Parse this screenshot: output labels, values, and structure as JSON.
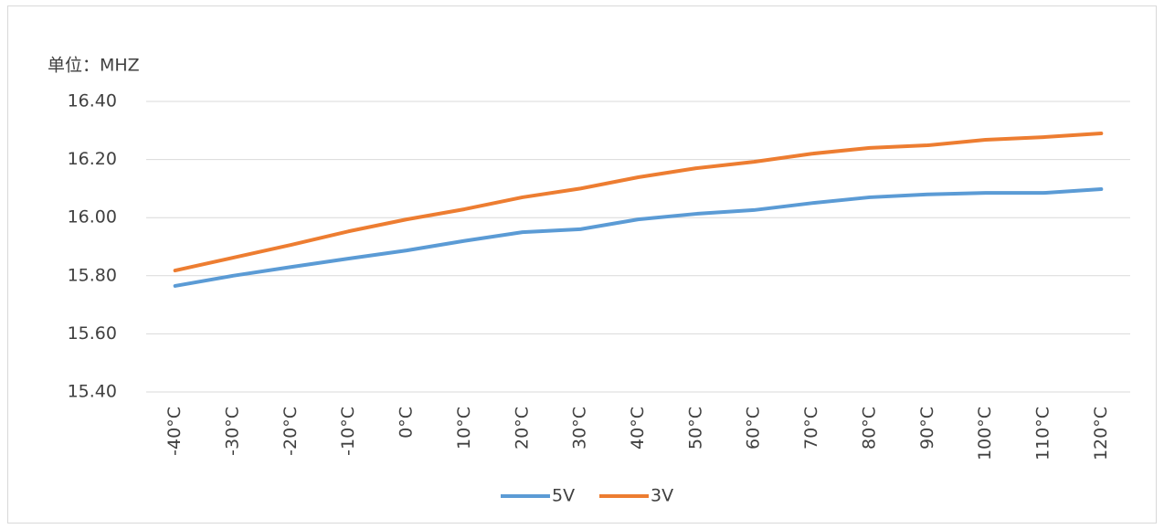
{
  "chart_data": {
    "type": "line",
    "y_label": "单位：MHZ",
    "categories": [
      "-40°C",
      "-30°C",
      "-20°C",
      "-10°C",
      "0°C",
      "10°C",
      "20°C",
      "30°C",
      "40°C",
      "50°C",
      "60°C",
      "70°C",
      "80°C",
      "90°C",
      "100°C",
      "110°C",
      "120°C"
    ],
    "series": [
      {
        "name": "5V",
        "color": "#5b9bd5",
        "values": [
          15.765,
          15.8,
          15.83,
          15.859,
          15.887,
          15.92,
          15.95,
          15.96,
          15.994,
          16.013,
          16.026,
          16.05,
          16.07,
          16.08,
          16.085,
          16.085,
          16.098
        ]
      },
      {
        "name": "3V",
        "color": "#ed7d31",
        "values": [
          15.818,
          15.862,
          15.906,
          15.953,
          15.994,
          16.029,
          16.07,
          16.1,
          16.139,
          16.17,
          16.192,
          16.22,
          16.24,
          16.249,
          16.268,
          16.277,
          16.29
        ]
      }
    ],
    "ylim": [
      15.4,
      16.4
    ],
    "yticks": [
      {
        "value": 15.4,
        "label": "15.40"
      },
      {
        "value": 15.6,
        "label": "15.60"
      },
      {
        "value": 15.8,
        "label": "15.80"
      },
      {
        "value": 16.0,
        "label": "16.00"
      },
      {
        "value": 16.2,
        "label": "16.20"
      },
      {
        "value": 16.4,
        "label": "16.40"
      }
    ],
    "grid": true,
    "legend": "bottom"
  }
}
